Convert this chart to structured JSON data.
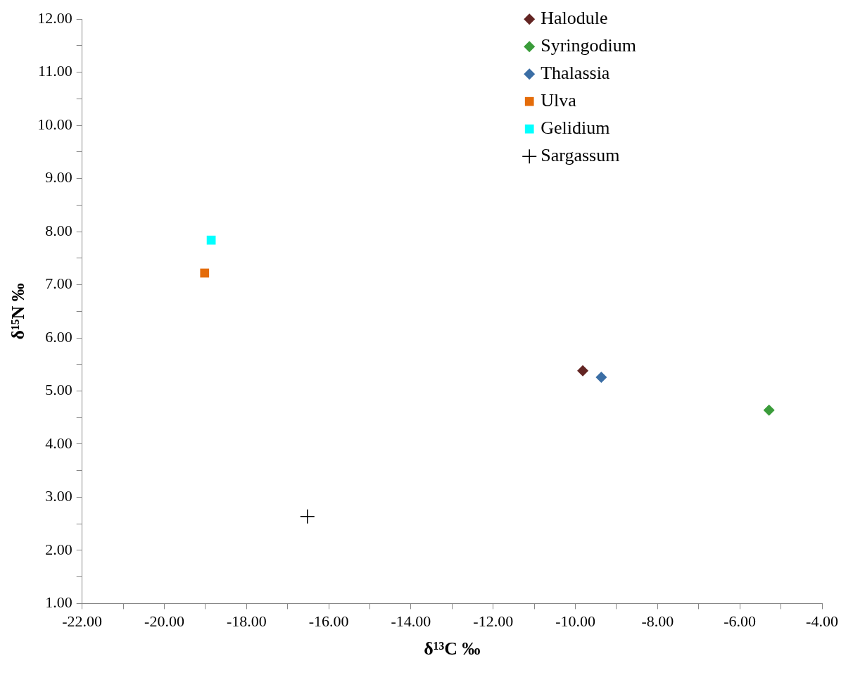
{
  "chart_data": {
    "type": "scatter",
    "xlabel": "δ¹³C ‰",
    "ylabel": "δ¹⁵N ‰",
    "xlim": [
      -22,
      -4
    ],
    "ylim": [
      1,
      12
    ],
    "xticks": [
      {
        "value": -22,
        "label": "-22.00"
      },
      {
        "value": -21,
        "label": null
      },
      {
        "value": -20,
        "label": "-20.00"
      },
      {
        "value": -19,
        "label": null
      },
      {
        "value": -18,
        "label": "-18.00"
      },
      {
        "value": -17,
        "label": null
      },
      {
        "value": -16,
        "label": "-16.00"
      },
      {
        "value": -15,
        "label": null
      },
      {
        "value": -14,
        "label": "-14.00"
      },
      {
        "value": -13,
        "label": null
      },
      {
        "value": -12,
        "label": "-12.00"
      },
      {
        "value": -11,
        "label": null
      },
      {
        "value": -10,
        "label": "-10.00"
      },
      {
        "value": -9,
        "label": null
      },
      {
        "value": -8,
        "label": "-8.00"
      },
      {
        "value": -7,
        "label": null
      },
      {
        "value": -6,
        "label": "-6.00"
      },
      {
        "value": -5,
        "label": null
      },
      {
        "value": -4,
        "label": "-4.00"
      }
    ],
    "yticks": [
      {
        "value": 1,
        "label": "1.00"
      },
      {
        "value": 1.5,
        "label": null
      },
      {
        "value": 2,
        "label": "2.00"
      },
      {
        "value": 2.5,
        "label": null
      },
      {
        "value": 3,
        "label": "3.00"
      },
      {
        "value": 3.5,
        "label": null
      },
      {
        "value": 4,
        "label": "4.00"
      },
      {
        "value": 4.5,
        "label": null
      },
      {
        "value": 5,
        "label": "5.00"
      },
      {
        "value": 5.5,
        "label": null
      },
      {
        "value": 6,
        "label": "6.00"
      },
      {
        "value": 6.5,
        "label": null
      },
      {
        "value": 7,
        "label": "7.00"
      },
      {
        "value": 7.5,
        "label": null
      },
      {
        "value": 8,
        "label": "8.00"
      },
      {
        "value": 8.5,
        "label": null
      },
      {
        "value": 9,
        "label": "9.00"
      },
      {
        "value": 9.5,
        "label": null
      },
      {
        "value": 10,
        "label": "10.00"
      },
      {
        "value": 10.5,
        "label": null
      },
      {
        "value": 11,
        "label": "11.00"
      },
      {
        "value": 11.5,
        "label": null
      },
      {
        "value": 12,
        "label": "12.00"
      }
    ],
    "grid": false,
    "legend": "top right",
    "series": [
      {
        "name": "Halodule",
        "color": "#632523",
        "marker": "diamond",
        "x": [
          -9.82
        ],
        "values": [
          5.38
        ]
      },
      {
        "name": "Syringodium",
        "color": "#3a9c3a",
        "marker": "diamond",
        "x": [
          -5.29
        ],
        "values": [
          4.64
        ]
      },
      {
        "name": "Thalassia",
        "color": "#3b6ea5",
        "marker": "diamond",
        "x": [
          -9.37
        ],
        "values": [
          5.26
        ]
      },
      {
        "name": "Ulva",
        "color": "#e46c0a",
        "marker": "square",
        "x": [
          -19.02
        ],
        "values": [
          7.22
        ]
      },
      {
        "name": "Gelidium",
        "color": "#00ffff",
        "marker": "square",
        "x": [
          -18.86
        ],
        "values": [
          7.84
        ]
      },
      {
        "name": "Sargassum",
        "color": "#000000",
        "marker": "cross",
        "x": [
          -16.52
        ],
        "values": [
          2.64
        ]
      }
    ]
  }
}
